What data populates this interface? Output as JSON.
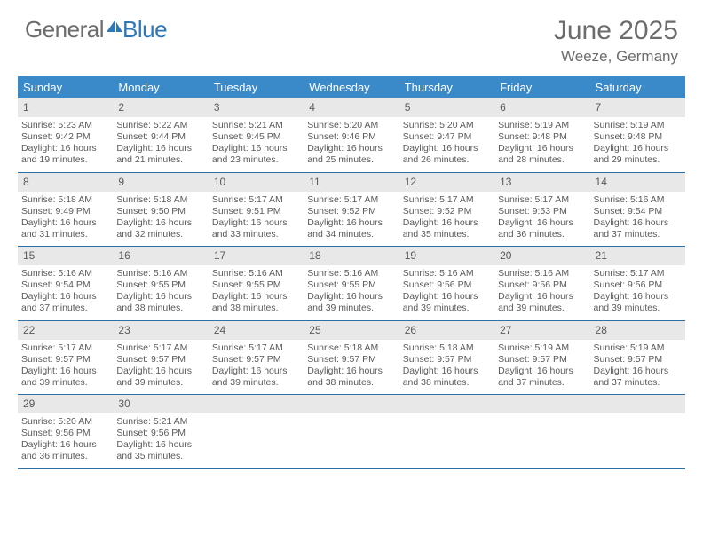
{
  "brand": {
    "part1": "General",
    "part2": "Blue"
  },
  "title": "June 2025",
  "location": "Weeze, Germany",
  "colors": {
    "header_bg": "#3a89c9",
    "header_text": "#ffffff",
    "border": "#2f6ea3",
    "daynum_bg": "#e8e8e8",
    "body_text": "#5a5a5a",
    "brand_gray": "#6c6c6c",
    "brand_blue": "#2f78b7",
    "page_bg": "#ffffff"
  },
  "day_names": [
    "Sunday",
    "Monday",
    "Tuesday",
    "Wednesday",
    "Thursday",
    "Friday",
    "Saturday"
  ],
  "weeks": [
    [
      {
        "n": "1",
        "sr": "5:23 AM",
        "ss": "9:42 PM",
        "dl": "16 hours and 19 minutes."
      },
      {
        "n": "2",
        "sr": "5:22 AM",
        "ss": "9:44 PM",
        "dl": "16 hours and 21 minutes."
      },
      {
        "n": "3",
        "sr": "5:21 AM",
        "ss": "9:45 PM",
        "dl": "16 hours and 23 minutes."
      },
      {
        "n": "4",
        "sr": "5:20 AM",
        "ss": "9:46 PM",
        "dl": "16 hours and 25 minutes."
      },
      {
        "n": "5",
        "sr": "5:20 AM",
        "ss": "9:47 PM",
        "dl": "16 hours and 26 minutes."
      },
      {
        "n": "6",
        "sr": "5:19 AM",
        "ss": "9:48 PM",
        "dl": "16 hours and 28 minutes."
      },
      {
        "n": "7",
        "sr": "5:19 AM",
        "ss": "9:48 PM",
        "dl": "16 hours and 29 minutes."
      }
    ],
    [
      {
        "n": "8",
        "sr": "5:18 AM",
        "ss": "9:49 PM",
        "dl": "16 hours and 31 minutes."
      },
      {
        "n": "9",
        "sr": "5:18 AM",
        "ss": "9:50 PM",
        "dl": "16 hours and 32 minutes."
      },
      {
        "n": "10",
        "sr": "5:17 AM",
        "ss": "9:51 PM",
        "dl": "16 hours and 33 minutes."
      },
      {
        "n": "11",
        "sr": "5:17 AM",
        "ss": "9:52 PM",
        "dl": "16 hours and 34 minutes."
      },
      {
        "n": "12",
        "sr": "5:17 AM",
        "ss": "9:52 PM",
        "dl": "16 hours and 35 minutes."
      },
      {
        "n": "13",
        "sr": "5:17 AM",
        "ss": "9:53 PM",
        "dl": "16 hours and 36 minutes."
      },
      {
        "n": "14",
        "sr": "5:16 AM",
        "ss": "9:54 PM",
        "dl": "16 hours and 37 minutes."
      }
    ],
    [
      {
        "n": "15",
        "sr": "5:16 AM",
        "ss": "9:54 PM",
        "dl": "16 hours and 37 minutes."
      },
      {
        "n": "16",
        "sr": "5:16 AM",
        "ss": "9:55 PM",
        "dl": "16 hours and 38 minutes."
      },
      {
        "n": "17",
        "sr": "5:16 AM",
        "ss": "9:55 PM",
        "dl": "16 hours and 38 minutes."
      },
      {
        "n": "18",
        "sr": "5:16 AM",
        "ss": "9:55 PM",
        "dl": "16 hours and 39 minutes."
      },
      {
        "n": "19",
        "sr": "5:16 AM",
        "ss": "9:56 PM",
        "dl": "16 hours and 39 minutes."
      },
      {
        "n": "20",
        "sr": "5:16 AM",
        "ss": "9:56 PM",
        "dl": "16 hours and 39 minutes."
      },
      {
        "n": "21",
        "sr": "5:17 AM",
        "ss": "9:56 PM",
        "dl": "16 hours and 39 minutes."
      }
    ],
    [
      {
        "n": "22",
        "sr": "5:17 AM",
        "ss": "9:57 PM",
        "dl": "16 hours and 39 minutes."
      },
      {
        "n": "23",
        "sr": "5:17 AM",
        "ss": "9:57 PM",
        "dl": "16 hours and 39 minutes."
      },
      {
        "n": "24",
        "sr": "5:17 AM",
        "ss": "9:57 PM",
        "dl": "16 hours and 39 minutes."
      },
      {
        "n": "25",
        "sr": "5:18 AM",
        "ss": "9:57 PM",
        "dl": "16 hours and 38 minutes."
      },
      {
        "n": "26",
        "sr": "5:18 AM",
        "ss": "9:57 PM",
        "dl": "16 hours and 38 minutes."
      },
      {
        "n": "27",
        "sr": "5:19 AM",
        "ss": "9:57 PM",
        "dl": "16 hours and 37 minutes."
      },
      {
        "n": "28",
        "sr": "5:19 AM",
        "ss": "9:57 PM",
        "dl": "16 hours and 37 minutes."
      }
    ],
    [
      {
        "n": "29",
        "sr": "5:20 AM",
        "ss": "9:56 PM",
        "dl": "16 hours and 36 minutes."
      },
      {
        "n": "30",
        "sr": "5:21 AM",
        "ss": "9:56 PM",
        "dl": "16 hours and 35 minutes."
      },
      null,
      null,
      null,
      null,
      null
    ]
  ],
  "labels": {
    "sunrise": "Sunrise:",
    "sunset": "Sunset:",
    "daylight": "Daylight:"
  }
}
